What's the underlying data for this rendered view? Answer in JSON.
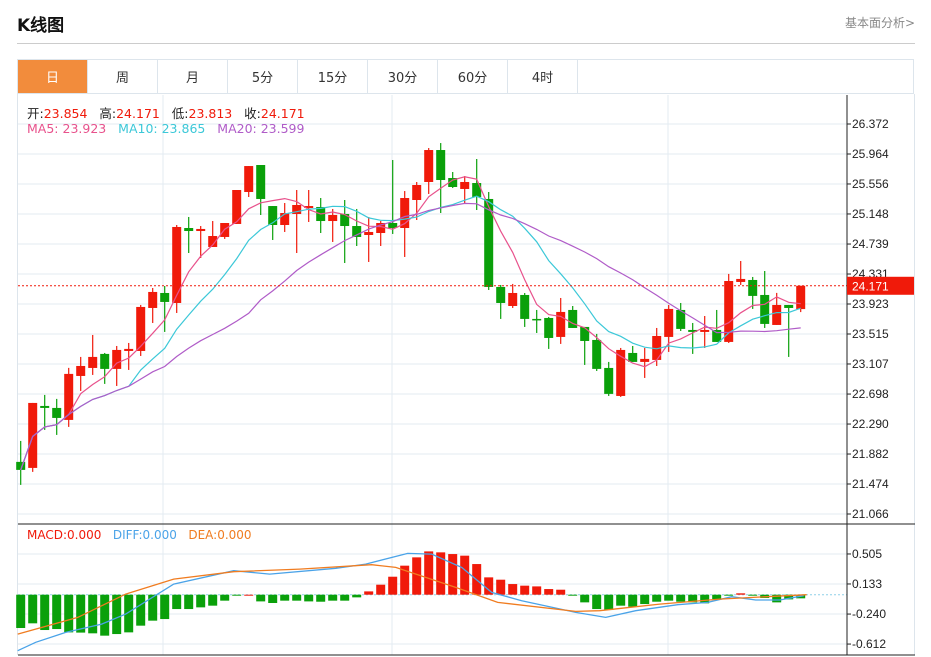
{
  "header": {
    "title": "K线图",
    "link": "基本面分析>"
  },
  "tabs": [
    {
      "label": "日",
      "active": true
    },
    {
      "label": "周"
    },
    {
      "label": "月"
    },
    {
      "label": "5分"
    },
    {
      "label": "15分"
    },
    {
      "label": "30分"
    },
    {
      "label": "60分"
    },
    {
      "label": "4时"
    }
  ],
  "info": {
    "open_label": "开:",
    "open": "23.854",
    "high_label": "高:",
    "high": "24.171",
    "low_label": "低:",
    "low": "23.813",
    "close_label": "收:",
    "close": "24.171",
    "ma5_label": "MA5:",
    "ma5": "23.923",
    "ma10_label": "MA10:",
    "ma10": "23.865",
    "ma20_label": "MA20:",
    "ma20": "23.599"
  },
  "macd_info": {
    "macd": "MACD:0.000",
    "diff": "DIFF:0.000",
    "dea": "DEA:0.000"
  },
  "colors": {
    "up": "#f01a0a",
    "down": "#0aa00a",
    "ma5": "#e8528c",
    "ma10": "#3cc8d8",
    "ma20": "#b05cc8",
    "diff": "#4aa3e8",
    "dea": "#f07c20",
    "accent": "#f28c3c"
  },
  "chart_data": {
    "type": "candlestick",
    "price_axis": {
      "ticks": [
        "26.372",
        "25.964",
        "25.556",
        "25.148",
        "24.739",
        "24.331",
        "23.923",
        "23.515",
        "23.107",
        "22.698",
        "22.290",
        "21.882",
        "21.474",
        "21.066"
      ],
      "range": [
        21.066,
        26.372
      ]
    },
    "last_price": "24.171",
    "candles": [
      [
        21.775,
        21.666,
        22.06,
        21.462
      ],
      [
        21.693,
        22.577,
        22.577,
        21.639
      ],
      [
        22.536,
        22.509,
        22.686,
        22.21
      ],
      [
        22.509,
        22.373,
        22.632,
        22.142
      ],
      [
        22.346,
        22.972,
        23.054,
        22.251
      ],
      [
        22.944,
        23.08,
        23.203,
        22.74
      ],
      [
        23.053,
        23.203,
        23.502,
        22.958
      ],
      [
        23.244,
        23.04,
        23.257,
        22.836
      ],
      [
        23.04,
        23.298,
        23.352,
        22.808
      ],
      [
        23.284,
        23.312,
        23.393,
        23.026
      ],
      [
        23.284,
        23.883,
        23.91,
        23.216
      ],
      [
        23.869,
        24.087,
        24.141,
        23.665
      ],
      [
        24.073,
        23.951,
        24.168,
        23.543
      ],
      [
        23.937,
        24.971,
        24.998,
        23.801
      ],
      [
        24.957,
        24.916,
        25.107,
        24.617
      ],
      [
        24.916,
        24.944,
        24.984,
        24.549
      ],
      [
        24.699,
        24.848,
        25.052,
        24.699
      ],
      [
        24.835,
        25.025,
        25.025,
        24.808
      ],
      [
        25.012,
        25.474,
        25.474,
        25.012
      ],
      [
        25.447,
        25.8,
        25.8,
        25.379
      ],
      [
        25.814,
        25.352,
        25.814,
        25.134
      ],
      [
        25.256,
        24.998,
        25.256,
        24.794
      ],
      [
        24.998,
        25.161,
        25.297,
        24.903
      ],
      [
        25.148,
        25.27,
        25.474,
        24.617
      ],
      [
        25.229,
        25.256,
        25.474,
        25.039
      ],
      [
        25.243,
        25.052,
        25.365,
        24.889
      ],
      [
        25.052,
        25.134,
        25.216,
        24.767
      ],
      [
        25.148,
        24.984,
        25.338,
        24.481
      ],
      [
        24.984,
        24.835,
        25.216,
        24.712
      ],
      [
        24.862,
        24.903,
        25.107,
        24.495
      ],
      [
        24.889,
        25.025,
        25.052,
        24.712
      ],
      [
        25.025,
        24.957,
        25.882,
        24.876
      ],
      [
        24.957,
        25.365,
        25.46,
        24.563
      ],
      [
        25.338,
        25.542,
        25.583,
        25.066
      ],
      [
        25.583,
        26.018,
        26.045,
        25.42
      ],
      [
        26.018,
        25.61,
        26.113,
        25.161
      ],
      [
        25.637,
        25.515,
        25.719,
        25.501
      ],
      [
        25.488,
        25.583,
        25.664,
        25.297
      ],
      [
        25.569,
        25.379,
        25.896,
        25.202
      ],
      [
        25.352,
        24.155,
        25.447,
        24.114
      ],
      [
        24.155,
        23.937,
        24.182,
        23.72
      ],
      [
        23.896,
        24.073,
        24.196,
        23.869
      ],
      [
        24.046,
        23.72,
        24.073,
        23.611
      ],
      [
        23.72,
        23.706,
        23.842,
        23.529
      ],
      [
        23.733,
        23.461,
        23.747,
        23.312
      ],
      [
        23.475,
        23.815,
        24.005,
        23.38
      ],
      [
        23.842,
        23.597,
        23.896,
        23.597
      ],
      [
        23.611,
        23.42,
        23.611,
        23.094
      ],
      [
        23.434,
        23.04,
        23.516,
        23.012
      ],
      [
        23.053,
        22.7,
        23.135,
        22.672
      ],
      [
        22.672,
        23.298,
        23.325,
        22.659
      ],
      [
        23.257,
        23.135,
        23.352,
        23.135
      ],
      [
        23.135,
        23.176,
        23.325,
        22.917
      ],
      [
        23.162,
        23.488,
        23.597,
        23.08
      ],
      [
        23.475,
        23.856,
        23.91,
        23.271
      ],
      [
        23.842,
        23.584,
        23.937,
        23.556
      ],
      [
        23.57,
        23.543,
        23.665,
        23.244
      ],
      [
        23.543,
        23.57,
        23.76,
        23.325
      ],
      [
        23.57,
        23.407,
        23.842,
        23.407
      ],
      [
        23.407,
        24.236,
        24.332,
        23.393
      ],
      [
        24.223,
        24.264,
        24.508,
        24.182
      ],
      [
        24.25,
        24.033,
        24.291,
        23.856
      ],
      [
        24.046,
        23.652,
        24.372,
        23.597
      ],
      [
        23.638,
        23.91,
        24.074,
        23.638
      ],
      [
        23.91,
        23.869,
        23.91,
        23.203
      ],
      [
        23.854,
        24.171,
        24.171,
        23.813
      ]
    ],
    "candle_format": [
      "open",
      "close",
      "high",
      "low"
    ],
    "macd": {
      "axis_ticks": [
        "0.505",
        "0.133",
        "-0.240",
        "-0.612"
      ],
      "histogram": [
        -0.413,
        -0.355,
        -0.438,
        -0.426,
        -0.467,
        -0.47,
        -0.479,
        -0.508,
        -0.488,
        -0.467,
        -0.384,
        -0.322,
        -0.302,
        -0.178,
        -0.178,
        -0.157,
        -0.136,
        -0.074,
        -0.004,
        0.0,
        -0.083,
        -0.103,
        -0.074,
        -0.074,
        -0.083,
        -0.087,
        -0.074,
        -0.074,
        -0.033,
        0.041,
        0.124,
        0.223,
        0.36,
        0.463,
        0.537,
        0.525,
        0.504,
        0.484,
        0.38,
        0.215,
        0.186,
        0.132,
        0.112,
        0.103,
        0.07,
        0.062,
        -0.012,
        -0.095,
        -0.178,
        -0.19,
        -0.136,
        -0.149,
        -0.116,
        -0.087,
        -0.074,
        -0.087,
        -0.095,
        -0.107,
        -0.054,
        -0.012,
        0.017,
        -0.012,
        -0.041,
        -0.095,
        -0.058,
        -0.045
      ],
      "diff": [
        [
          -0.25,
          -0.694
        ],
        [
          1.25,
          -0.59
        ],
        [
          3.75,
          -0.467
        ],
        [
          6.75,
          -0.364
        ],
        [
          8.75,
          -0.24
        ],
        [
          12.75,
          0.132
        ],
        [
          17.75,
          0.298
        ],
        [
          20.75,
          0.256
        ],
        [
          26.25,
          0.327
        ],
        [
          28.75,
          0.38
        ],
        [
          32.25,
          0.512
        ],
        [
          34.25,
          0.504
        ],
        [
          36.75,
          0.339
        ],
        [
          39.25,
          0.029
        ],
        [
          41.75,
          -0.074
        ],
        [
          46.25,
          -0.219
        ],
        [
          48.75,
          -0.281
        ],
        [
          51.25,
          -0.198
        ],
        [
          54.75,
          -0.124
        ],
        [
          57.25,
          -0.095
        ],
        [
          59.25,
          -0.025
        ],
        [
          61.25,
          -0.066
        ],
        [
          63.25,
          -0.066
        ],
        [
          65.25,
          -0.012
        ]
      ],
      "dea": [
        [
          -0.25,
          -0.488
        ],
        [
          4.75,
          -0.281
        ],
        [
          8.75,
          0.008
        ],
        [
          12.75,
          0.194
        ],
        [
          17.75,
          0.285
        ],
        [
          23.25,
          0.318
        ],
        [
          29.25,
          0.372
        ],
        [
          31.25,
          0.339
        ],
        [
          36.25,
          0.091
        ],
        [
          39.75,
          -0.095
        ],
        [
          46.25,
          -0.207
        ],
        [
          48.25,
          -0.198
        ],
        [
          53.25,
          -0.116
        ],
        [
          58.25,
          -0.054
        ],
        [
          65.5,
          0.0
        ]
      ]
    }
  }
}
